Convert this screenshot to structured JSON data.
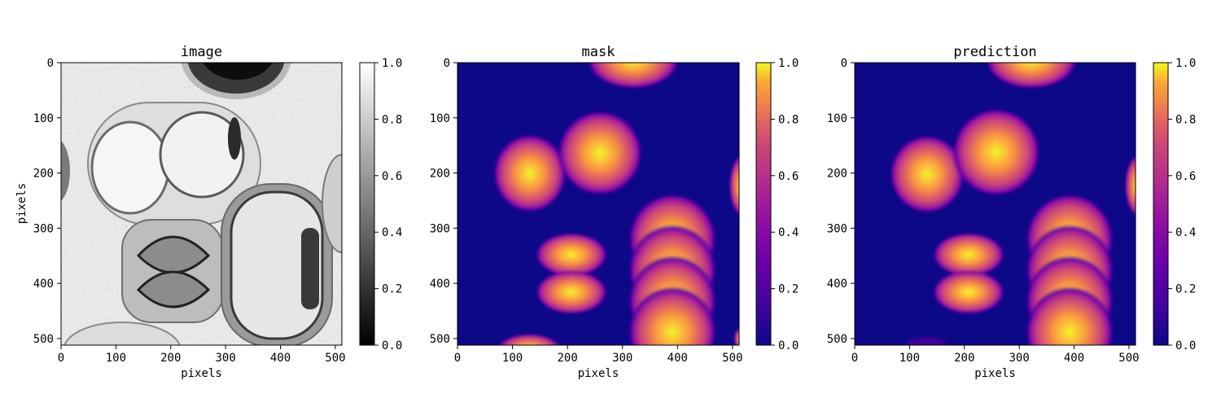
{
  "chart_data": [
    {
      "type": "heatmap",
      "title": "image",
      "xlabel": "pixels",
      "ylabel": "pixels",
      "xlim": [
        0,
        512
      ],
      "ylim": [
        512,
        0
      ],
      "xticks": [
        "0",
        "100",
        "200",
        "300",
        "400",
        "500"
      ],
      "yticks": [
        "0",
        "100",
        "200",
        "300",
        "400",
        "500"
      ],
      "colormap": "gray",
      "colorbar": {
        "range": [
          0,
          1
        ],
        "ticks": [
          "0.0",
          "0.2",
          "0.4",
          "0.6",
          "0.8",
          "1.0"
        ]
      }
    },
    {
      "type": "heatmap",
      "title": "mask",
      "xlabel": "pixels",
      "ylabel": "",
      "xlim": [
        0,
        512
      ],
      "ylim": [
        512,
        0
      ],
      "xticks": [
        "0",
        "100",
        "200",
        "300",
        "400",
        "500"
      ],
      "yticks": [
        "0",
        "100",
        "200",
        "300",
        "400",
        "500"
      ],
      "colormap": "plasma",
      "colorbar": {
        "range": [
          0,
          1
        ],
        "ticks": [
          "0.0",
          "0.2",
          "0.4",
          "0.6",
          "0.8",
          "1.0"
        ]
      }
    },
    {
      "type": "heatmap",
      "title": "prediction",
      "xlabel": "pixels",
      "ylabel": "",
      "xlim": [
        0,
        512
      ],
      "ylim": [
        512,
        0
      ],
      "xticks": [
        "0",
        "100",
        "200",
        "300",
        "400",
        "500"
      ],
      "yticks": [
        "0",
        "100",
        "200",
        "300",
        "400",
        "500"
      ],
      "colormap": "plasma",
      "colorbar": {
        "range": [
          0,
          1
        ],
        "ticks": [
          "0.0",
          "0.2",
          "0.4",
          "0.6",
          "0.8",
          "1.0"
        ]
      }
    }
  ]
}
